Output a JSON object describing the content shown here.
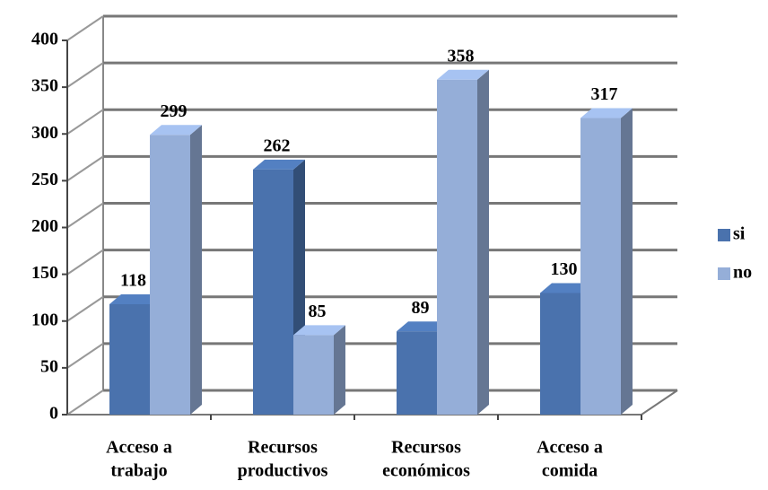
{
  "chart_data": {
    "type": "bar3d",
    "categories": [
      [
        "Acceso a",
        "trabajo"
      ],
      [
        "Recursos",
        "productivos"
      ],
      [
        "Recursos",
        "económicos"
      ],
      [
        "Acceso a",
        "comida"
      ]
    ],
    "series": [
      {
        "name": "si",
        "color": "#4a72ad",
        "values": [
          118,
          262,
          89,
          130
        ]
      },
      {
        "name": "no",
        "color": "#95aed8",
        "values": [
          299,
          85,
          358,
          317
        ]
      }
    ],
    "ylim": [
      0,
      400
    ],
    "yticks": [
      0,
      50,
      100,
      150,
      200,
      250,
      300,
      350,
      400
    ],
    "grid": true,
    "legend": "right"
  }
}
